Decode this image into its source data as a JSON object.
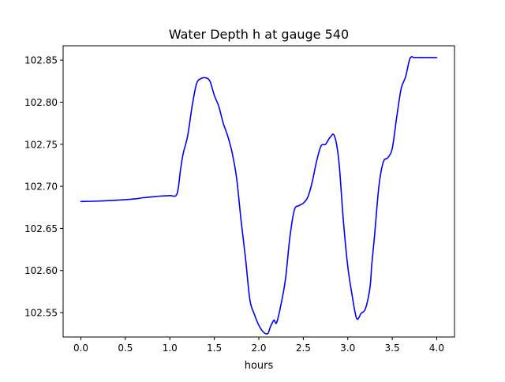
{
  "chart_data": {
    "type": "line",
    "title": "Water Depth h at gauge 540",
    "xlabel": "hours",
    "ylabel": "",
    "xlim": [
      -0.2,
      4.2
    ],
    "ylim": [
      102.521,
      102.867
    ],
    "xticks": [
      0.0,
      0.5,
      1.0,
      1.5,
      2.0,
      2.5,
      3.0,
      3.5,
      4.0
    ],
    "xtick_labels": [
      "0.0",
      "0.5",
      "1.0",
      "1.5",
      "2.0",
      "2.5",
      "3.0",
      "3.5",
      "4.0"
    ],
    "yticks": [
      102.55,
      102.6,
      102.65,
      102.7,
      102.75,
      102.8,
      102.85
    ],
    "ytick_labels": [
      "102.55",
      "102.60",
      "102.65",
      "102.70",
      "102.75",
      "102.80",
      "102.85"
    ],
    "grid": false,
    "series": [
      {
        "color": "#0000ff",
        "x": [
          0.0,
          0.2,
          0.4,
          0.6,
          0.7,
          0.8,
          0.9,
          1.0,
          1.08,
          1.12,
          1.15,
          1.2,
          1.25,
          1.3,
          1.35,
          1.4,
          1.45,
          1.5,
          1.55,
          1.6,
          1.65,
          1.7,
          1.75,
          1.8,
          1.85,
          1.9,
          1.95,
          2.0,
          2.05,
          2.1,
          2.13,
          2.17,
          2.2,
          2.25,
          2.3,
          2.35,
          2.4,
          2.45,
          2.5,
          2.55,
          2.6,
          2.65,
          2.7,
          2.75,
          2.8,
          2.85,
          2.9,
          2.95,
          3.0,
          3.05,
          3.1,
          3.15,
          3.2,
          3.25,
          3.27,
          3.3,
          3.35,
          3.4,
          3.45,
          3.5,
          3.55,
          3.6,
          3.65,
          3.7,
          3.75,
          3.8,
          3.85,
          3.9,
          3.95,
          4.0
        ],
        "y": [
          102.682,
          102.6825,
          102.6835,
          102.685,
          102.6865,
          102.6875,
          102.6885,
          102.689,
          102.691,
          102.72,
          102.739,
          102.76,
          102.795,
          102.822,
          102.828,
          102.829,
          102.825,
          102.808,
          102.795,
          102.775,
          102.76,
          102.74,
          102.71,
          102.66,
          102.615,
          102.565,
          102.548,
          102.535,
          102.527,
          102.525,
          102.533,
          102.541,
          102.538,
          102.56,
          102.59,
          102.64,
          102.672,
          102.677,
          102.68,
          102.687,
          102.705,
          102.73,
          102.748,
          102.75,
          102.758,
          102.76,
          102.73,
          102.66,
          102.605,
          102.57,
          102.543,
          102.549,
          102.555,
          102.58,
          102.607,
          102.64,
          102.7,
          102.729,
          102.734,
          102.745,
          102.782,
          102.816,
          102.83,
          102.852,
          102.853,
          102.853,
          102.853,
          102.853,
          102.853,
          102.853
        ]
      }
    ]
  }
}
